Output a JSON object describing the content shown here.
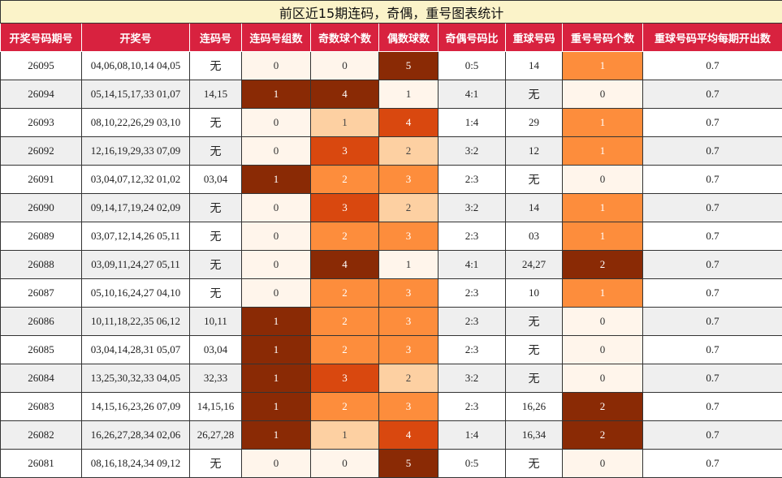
{
  "title": "前区近15期连码，奇偶，重号图表统计",
  "headers": [
    "开奖号码期号",
    "开奖号",
    "连码号",
    "连码号组数",
    "奇数球个数",
    "偶数球数",
    "奇偶号码比",
    "重球号码",
    "重号号码个数",
    "重球号码平均每期开出数"
  ],
  "heat_colors": {
    "dark": "#8a2a05",
    "red": "#d9480f",
    "orange": "#fd8d3c",
    "light": "#fdd0a2",
    "pale": "#fff5eb"
  },
  "rows": [
    {
      "issue": "26095",
      "numbers": "04,06,08,10,14 04,05",
      "consec": "无",
      "consec_groups": "0",
      "odd": "0",
      "even": "5",
      "ratio": "0:5",
      "repeat": "14",
      "repeat_count": "1",
      "avg": "0.7"
    },
    {
      "issue": "26094",
      "numbers": "05,14,15,17,33 01,07",
      "consec": "14,15",
      "consec_groups": "1",
      "odd": "4",
      "even": "1",
      "ratio": "4:1",
      "repeat": "无",
      "repeat_count": "0",
      "avg": "0.7"
    },
    {
      "issue": "26093",
      "numbers": "08,10,22,26,29 03,10",
      "consec": "无",
      "consec_groups": "0",
      "odd": "1",
      "even": "4",
      "ratio": "1:4",
      "repeat": "29",
      "repeat_count": "1",
      "avg": "0.7"
    },
    {
      "issue": "26092",
      "numbers": "12,16,19,29,33 07,09",
      "consec": "无",
      "consec_groups": "0",
      "odd": "3",
      "even": "2",
      "ratio": "3:2",
      "repeat": "12",
      "repeat_count": "1",
      "avg": "0.7"
    },
    {
      "issue": "26091",
      "numbers": "03,04,07,12,32 01,02",
      "consec": "03,04",
      "consec_groups": "1",
      "odd": "2",
      "even": "3",
      "ratio": "2:3",
      "repeat": "无",
      "repeat_count": "0",
      "avg": "0.7"
    },
    {
      "issue": "26090",
      "numbers": "09,14,17,19,24 02,09",
      "consec": "无",
      "consec_groups": "0",
      "odd": "3",
      "even": "2",
      "ratio": "3:2",
      "repeat": "14",
      "repeat_count": "1",
      "avg": "0.7"
    },
    {
      "issue": "26089",
      "numbers": "03,07,12,14,26 05,11",
      "consec": "无",
      "consec_groups": "0",
      "odd": "2",
      "even": "3",
      "ratio": "2:3",
      "repeat": "03",
      "repeat_count": "1",
      "avg": "0.7"
    },
    {
      "issue": "26088",
      "numbers": "03,09,11,24,27 05,11",
      "consec": "无",
      "consec_groups": "0",
      "odd": "4",
      "even": "1",
      "ratio": "4:1",
      "repeat": "24,27",
      "repeat_count": "2",
      "avg": "0.7"
    },
    {
      "issue": "26087",
      "numbers": "05,10,16,24,27 04,10",
      "consec": "无",
      "consec_groups": "0",
      "odd": "2",
      "even": "3",
      "ratio": "2:3",
      "repeat": "10",
      "repeat_count": "1",
      "avg": "0.7"
    },
    {
      "issue": "26086",
      "numbers": "10,11,18,22,35 06,12",
      "consec": "10,11",
      "consec_groups": "1",
      "odd": "2",
      "even": "3",
      "ratio": "2:3",
      "repeat": "无",
      "repeat_count": "0",
      "avg": "0.7"
    },
    {
      "issue": "26085",
      "numbers": "03,04,14,28,31 05,07",
      "consec": "03,04",
      "consec_groups": "1",
      "odd": "2",
      "even": "3",
      "ratio": "2:3",
      "repeat": "无",
      "repeat_count": "0",
      "avg": "0.7"
    },
    {
      "issue": "26084",
      "numbers": "13,25,30,32,33 04,05",
      "consec": "32,33",
      "consec_groups": "1",
      "odd": "3",
      "even": "2",
      "ratio": "3:2",
      "repeat": "无",
      "repeat_count": "0",
      "avg": "0.7"
    },
    {
      "issue": "26083",
      "numbers": "14,15,16,23,26 07,09",
      "consec": "14,15,16",
      "consec_groups": "1",
      "odd": "2",
      "even": "3",
      "ratio": "2:3",
      "repeat": "16,26",
      "repeat_count": "2",
      "avg": "0.7"
    },
    {
      "issue": "26082",
      "numbers": "16,26,27,28,34 02,06",
      "consec": "26,27,28",
      "consec_groups": "1",
      "odd": "1",
      "even": "4",
      "ratio": "1:4",
      "repeat": "16,34",
      "repeat_count": "2",
      "avg": "0.7"
    },
    {
      "issue": "26081",
      "numbers": "08,16,18,24,34 09,12",
      "consec": "无",
      "consec_groups": "0",
      "odd": "0",
      "even": "5",
      "ratio": "0:5",
      "repeat": "无",
      "repeat_count": "0",
      "avg": "0.7"
    }
  ]
}
